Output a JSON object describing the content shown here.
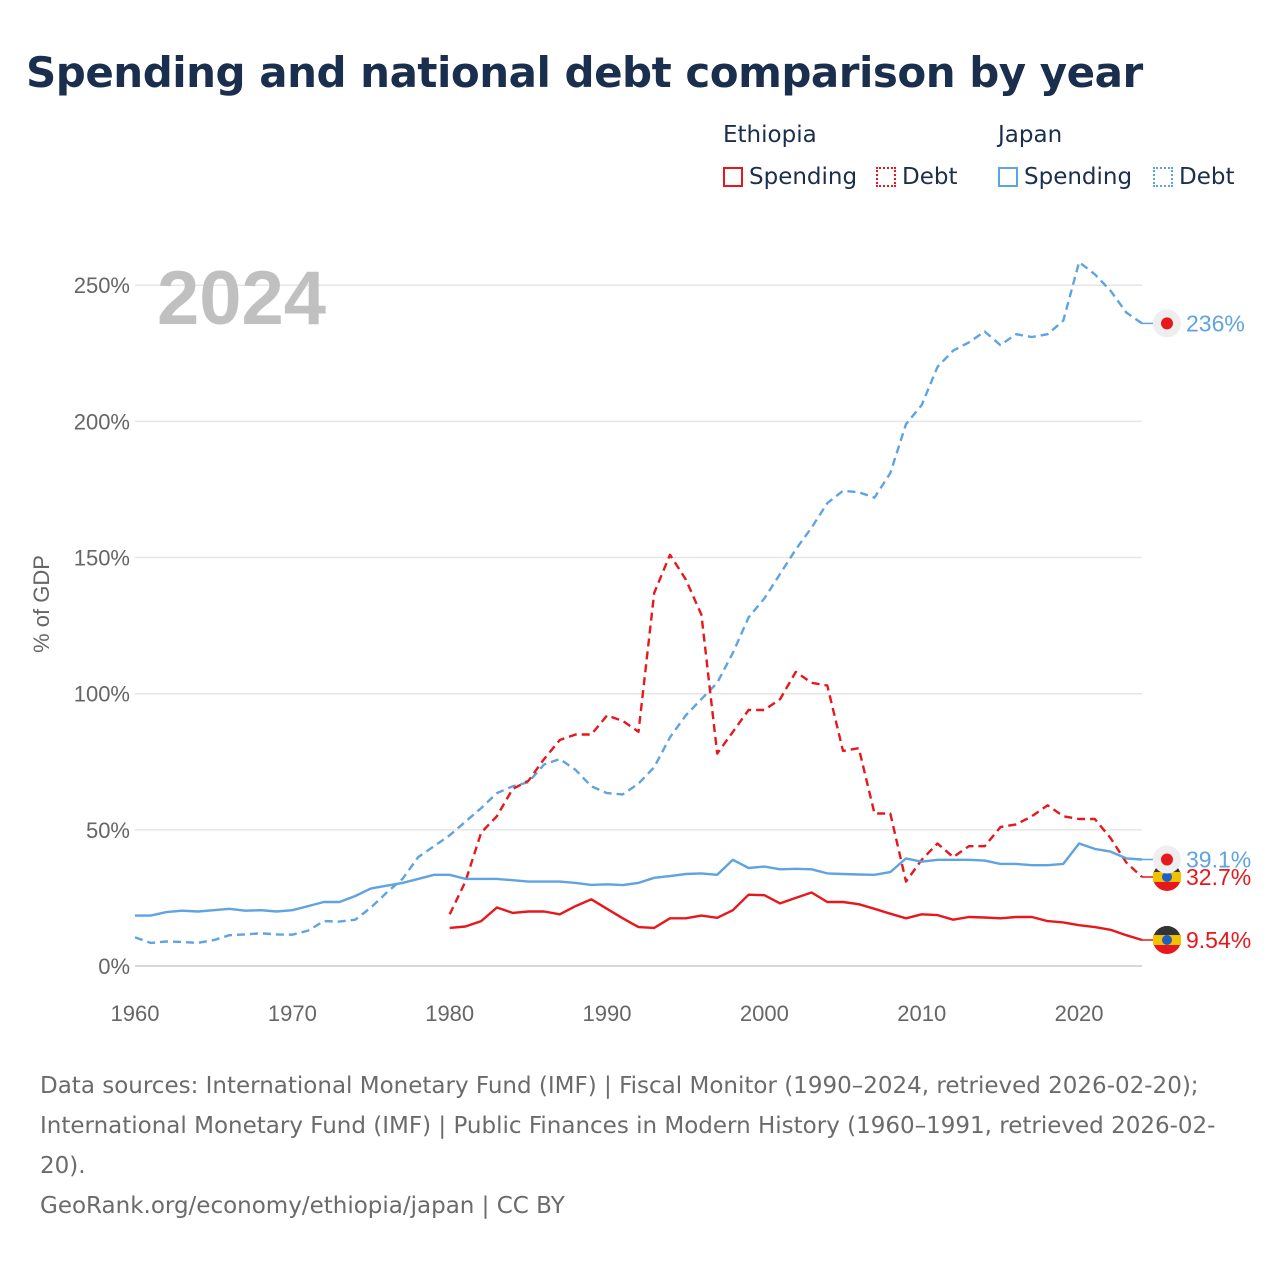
{
  "title": "Spending and national debt comparison by year",
  "legend": {
    "groups": [
      {
        "name": "Ethiopia",
        "color": "#e8171c",
        "items": [
          "Spending",
          "Debt"
        ]
      },
      {
        "name": "Japan",
        "color": "#5fa3e0",
        "items": [
          "Spending",
          "Debt"
        ]
      }
    ]
  },
  "sources": {
    "line1": "Data sources: International Monetary Fund (IMF) | Fiscal Monitor (1990–2024, retrieved 2026-02-20); International Monetary Fund (IMF) | Public Finances in Modern History (1960–1991, retrieved 2026-02-20).",
    "line2": "GeoRank.org/economy/ethiopia/japan | CC BY"
  },
  "chart_data": {
    "type": "line",
    "title": "Spending and national debt comparison by year",
    "year_watermark": "2024",
    "xlabel": "",
    "ylabel": "% of GDP",
    "xlim": [
      1960,
      2024
    ],
    "ylim": [
      0,
      260
    ],
    "x_ticks": [
      1960,
      1970,
      1980,
      1990,
      2000,
      2010,
      2020
    ],
    "y_ticks": [
      0,
      50,
      100,
      150,
      200,
      250
    ],
    "y_tick_labels": [
      "0%",
      "50%",
      "100%",
      "150%",
      "200%",
      "250%"
    ],
    "series": [
      {
        "name": "Japan Debt",
        "country": "Japan",
        "metric": "Debt",
        "color": "#5fa3e0",
        "dashed": true,
        "end_label": "236%",
        "x": [
          1960,
          1961,
          1962,
          1963,
          1964,
          1965,
          1966,
          1967,
          1968,
          1969,
          1970,
          1971,
          1972,
          1973,
          1974,
          1975,
          1976,
          1977,
          1978,
          1979,
          1980,
          1981,
          1982,
          1983,
          1984,
          1985,
          1986,
          1987,
          1988,
          1989,
          1990,
          1991,
          1992,
          1993,
          1994,
          1995,
          1996,
          1997,
          1998,
          1999,
          2000,
          2001,
          2002,
          2003,
          2004,
          2005,
          2006,
          2007,
          2008,
          2009,
          2010,
          2011,
          2012,
          2013,
          2014,
          2015,
          2016,
          2017,
          2018,
          2019,
          2020,
          2021,
          2022,
          2023,
          2024
        ],
        "values": [
          10.5,
          8.5,
          9,
          8.8,
          8.5,
          9.5,
          11.3,
          11.6,
          12,
          11.6,
          11.5,
          13,
          16.5,
          16.3,
          17,
          21.5,
          27,
          32,
          40,
          44,
          48,
          53,
          58,
          63.5,
          66,
          67.5,
          74,
          76,
          72,
          66,
          63.5,
          63,
          67,
          73,
          84,
          92,
          98,
          104,
          115,
          128,
          135,
          144,
          153,
          161,
          170,
          174.5,
          174,
          172,
          181,
          199,
          206,
          220,
          226,
          229,
          233,
          228,
          232,
          231,
          232,
          237,
          258.5,
          254,
          248,
          240,
          236
        ]
      },
      {
        "name": "Ethiopia Debt",
        "country": "Ethiopia",
        "metric": "Debt",
        "color": "#e8171c",
        "dashed": true,
        "end_label": "32.7%",
        "x": [
          1980,
          1981,
          1982,
          1983,
          1984,
          1985,
          1986,
          1987,
          1988,
          1989,
          1990,
          1991,
          1992,
          1993,
          1994,
          1995,
          1996,
          1997,
          1998,
          1999,
          2000,
          2001,
          2002,
          2003,
          2004,
          2005,
          2006,
          2007,
          2008,
          2009,
          2010,
          2011,
          2012,
          2013,
          2014,
          2015,
          2016,
          2017,
          2018,
          2019,
          2020,
          2021,
          2022,
          2023,
          2024
        ],
        "values": [
          19,
          31,
          49,
          55,
          65,
          68,
          76,
          83,
          85,
          85,
          92,
          90,
          86,
          137,
          151,
          142,
          129,
          78,
          86,
          94,
          94,
          98,
          108,
          104,
          103,
          79,
          80,
          56,
          56,
          31,
          39,
          45,
          40,
          44,
          44,
          51,
          52,
          55,
          59,
          55,
          54,
          54,
          47,
          38,
          32.7
        ]
      },
      {
        "name": "Japan Spending",
        "country": "Japan",
        "metric": "Spending",
        "color": "#5fa3e0",
        "dashed": false,
        "end_label": "39.1%",
        "x": [
          1960,
          1961,
          1962,
          1963,
          1964,
          1965,
          1966,
          1967,
          1968,
          1969,
          1970,
          1971,
          1972,
          1973,
          1974,
          1975,
          1976,
          1977,
          1978,
          1979,
          1980,
          1981,
          1982,
          1983,
          1984,
          1985,
          1986,
          1987,
          1988,
          1989,
          1990,
          1991,
          1992,
          1993,
          1994,
          1995,
          1996,
          1997,
          1998,
          1999,
          2000,
          2001,
          2002,
          2003,
          2004,
          2005,
          2006,
          2007,
          2008,
          2009,
          2010,
          2011,
          2012,
          2013,
          2014,
          2015,
          2016,
          2017,
          2018,
          2019,
          2020,
          2021,
          2022,
          2023,
          2024
        ],
        "values": [
          18.5,
          18.5,
          19.8,
          20.3,
          20,
          20.5,
          21,
          20.3,
          20.5,
          20,
          20.5,
          22,
          23.5,
          23.5,
          25.7,
          28.5,
          29.5,
          30.5,
          32,
          33.5,
          33.5,
          32,
          32,
          32,
          31.5,
          31,
          31,
          31,
          30.5,
          29.8,
          30,
          29.7,
          30.5,
          32.4,
          33,
          33.8,
          34,
          33.5,
          39,
          36,
          36.5,
          35.5,
          35.7,
          35.5,
          34,
          33.8,
          33.6,
          33.5,
          34.5,
          39.5,
          38.3,
          39,
          39,
          39,
          38.7,
          37.5,
          37.5,
          37,
          37,
          37.5,
          45,
          43,
          42,
          39.5,
          39.1
        ]
      },
      {
        "name": "Ethiopia Spending",
        "country": "Ethiopia",
        "metric": "Spending",
        "color": "#e8171c",
        "dashed": false,
        "end_label": "9.54%",
        "x": [
          1980,
          1981,
          1982,
          1983,
          1984,
          1985,
          1986,
          1987,
          1988,
          1989,
          1990,
          1991,
          1992,
          1993,
          1994,
          1995,
          1996,
          1997,
          1998,
          1999,
          2000,
          2001,
          2002,
          2003,
          2004,
          2005,
          2006,
          2007,
          2008,
          2009,
          2010,
          2011,
          2012,
          2013,
          2014,
          2015,
          2016,
          2017,
          2018,
          2019,
          2020,
          2021,
          2022,
          2023,
          2024
        ],
        "values": [
          14,
          14.5,
          16.5,
          21.5,
          19.5,
          20,
          20,
          19,
          22,
          24.5,
          21,
          17.5,
          14.3,
          14,
          17.5,
          17.5,
          18.5,
          17.7,
          20.5,
          26.2,
          26,
          23,
          25,
          27,
          23.5,
          23.5,
          22.7,
          21,
          19.2,
          17.5,
          19,
          18.7,
          17,
          18,
          17.8,
          17.5,
          18,
          18,
          16.5,
          16,
          15,
          14.3,
          13.3,
          11.3,
          9.54
        ]
      }
    ]
  }
}
